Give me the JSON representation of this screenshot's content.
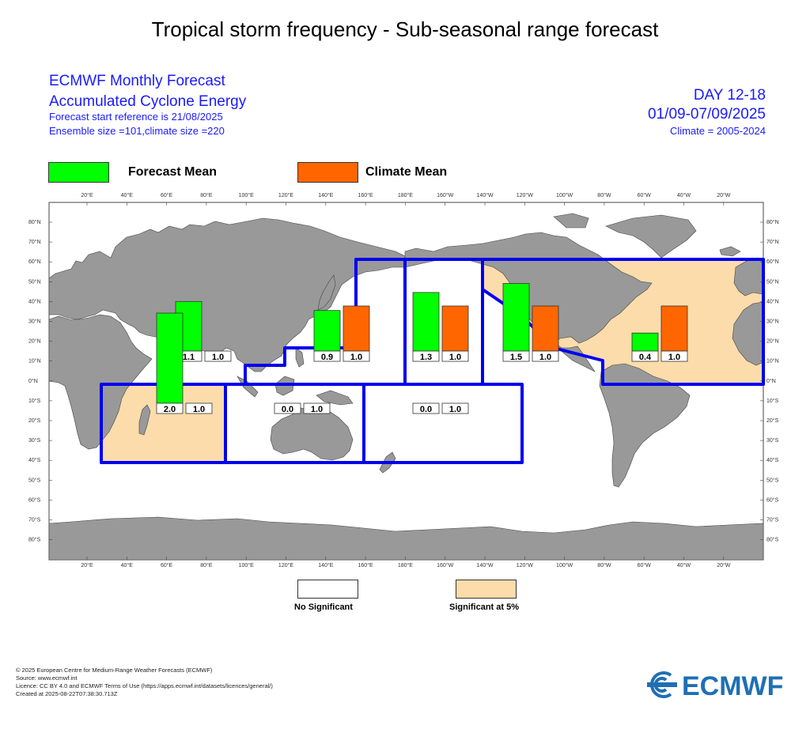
{
  "page_title": "Tropical storm frequency - Sub-seasonal range forecast",
  "header_left": {
    "line1": "ECMWF Monthly Forecast",
    "line2": "Accumulated Cyclone Energy",
    "line3": "Forecast start reference is 21/08/2025",
    "line4": "Ensemble size =101,climate size =220"
  },
  "header_right": {
    "line1": "DAY 12-18",
    "line2": "01/09-07/09/2025",
    "line3": "Climate = 2005-2024"
  },
  "legend_top": [
    {
      "label": "Forecast Mean",
      "color": "#00ff00"
    },
    {
      "label": "Climate Mean",
      "color": "#ff6600"
    }
  ],
  "legend_bottom": [
    {
      "label": "No Significant",
      "color": "#ffffff"
    },
    {
      "label": "Significant at 5%",
      "color": "#fcdcaa"
    }
  ],
  "colors": {
    "box_border": "#0000ee",
    "land": "#999999",
    "ocean": "#ffffff",
    "significant_fill": "#fcdcaa",
    "forecast": "#00ff00",
    "climate": "#ff6600"
  },
  "top_axis_labels": [
    "20°E",
    "40°E",
    "60°E",
    "80°E",
    "100°E",
    "120°E",
    "140°E",
    "160°E",
    "180°E",
    "160°W",
    "140°W",
    "120°W",
    "100°W",
    "80°W",
    "60°W",
    "40°W",
    "20°W"
  ],
  "left_axis_labels": [
    "80°N",
    "70°N",
    "60°N",
    "50°N",
    "40°N",
    "30°N",
    "20°N",
    "10°N",
    "0°N",
    "10°S",
    "20°S",
    "30°S",
    "40°S",
    "50°S",
    "60°S",
    "70°S",
    "80°S"
  ],
  "chart_data": {
    "type": "bar",
    "basins": [
      {
        "region": "North Indian",
        "significant": false,
        "forecast": 1.1,
        "climate": 1.0,
        "forecast_label": "1.1",
        "climate_label": "1.0"
      },
      {
        "region": "Western North Pacific",
        "significant": false,
        "forecast": 0.9,
        "climate": 1.0,
        "forecast_label": "0.9",
        "climate_label": "1.0"
      },
      {
        "region": "Central North Pacific",
        "significant": false,
        "forecast": 1.3,
        "climate": 1.0,
        "forecast_label": "1.3",
        "climate_label": "1.0"
      },
      {
        "region": "Eastern North Pacific",
        "significant": true,
        "forecast": 1.5,
        "climate": 1.0,
        "forecast_label": "1.5",
        "climate_label": "1.0"
      },
      {
        "region": "North Atlantic",
        "significant": true,
        "forecast": 0.4,
        "climate": 1.0,
        "forecast_label": "0.4",
        "climate_label": "1.0"
      },
      {
        "region": "South-West Indian",
        "significant": true,
        "forecast": 2.0,
        "climate": 1.0,
        "forecast_label": "2.0",
        "climate_label": "1.0"
      },
      {
        "region": "Australian",
        "significant": false,
        "forecast": 0.0,
        "climate": 1.0,
        "forecast_label": "0.0",
        "climate_label": "1.0"
      },
      {
        "region": "South Pacific",
        "significant": false,
        "forecast": 0.0,
        "climate": 1.0,
        "forecast_label": "0.0",
        "climate_label": "1.0"
      }
    ]
  },
  "footer": {
    "line1": "© 2025 European Centre for Medium-Range Weather Forecasts (ECMWF)",
    "line2": "Source: www.ecmwf.int",
    "line3": "Licence: CC BY 4.0 and ECMWF Terms of Use (https://apps.ecmwf.int/datasets/licences/general/)",
    "line4": "Created at 2025-08-22T07:38:30.713Z"
  },
  "logo_text": "ECMWF"
}
